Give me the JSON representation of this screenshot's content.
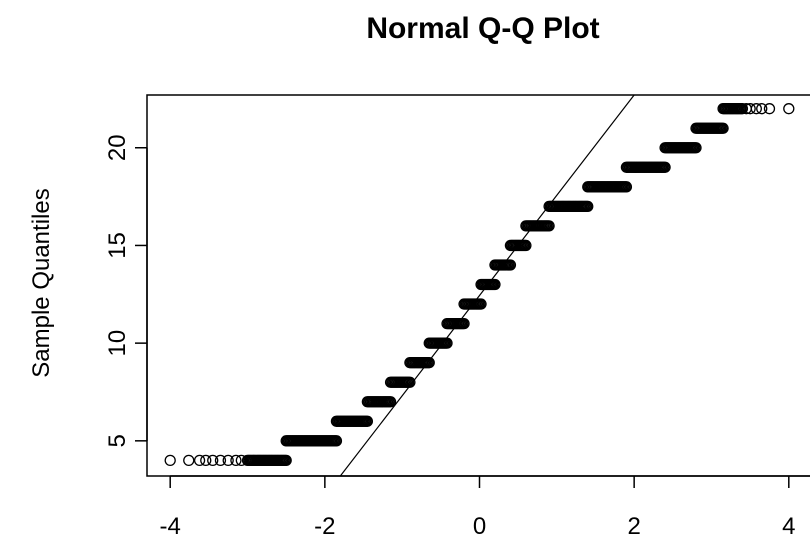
{
  "chart_data": {
    "type": "scatter",
    "title": "Normal Q-Q Plot",
    "xlabel": "",
    "ylabel": "Sample Quantiles",
    "xlim": [
      -4.3,
      4.3
    ],
    "ylim": [
      3.2,
      22.7
    ],
    "x_ticks": [
      -4,
      -2,
      0,
      2,
      4
    ],
    "x_tick_labels": [
      "-4",
      "-2",
      "0",
      "2",
      "4"
    ],
    "y_ticks": [
      5,
      10,
      15,
      20
    ],
    "y_tick_labels": [
      "5",
      "10",
      "15",
      "20"
    ],
    "grid": false,
    "legend": "none",
    "point_style": "open-circle",
    "reference_line": {
      "x1": -1.8,
      "y1": 3.2,
      "x2": 2.0,
      "y2": 22.7
    },
    "levels": [
      {
        "y": 4,
        "x_start": -3.0,
        "x_end": -2.5,
        "sparse_left": [
          -4.0,
          -3.76,
          -3.62,
          -3.54,
          -3.45,
          -3.35,
          -3.25,
          -3.15,
          -3.08
        ]
      },
      {
        "y": 5,
        "x_start": -2.5,
        "x_end": -1.85
      },
      {
        "y": 6,
        "x_start": -1.85,
        "x_end": -1.45
      },
      {
        "y": 7,
        "x_start": -1.45,
        "x_end": -1.15
      },
      {
        "y": 8,
        "x_start": -1.15,
        "x_end": -0.9
      },
      {
        "y": 9,
        "x_start": -0.9,
        "x_end": -0.65
      },
      {
        "y": 10,
        "x_start": -0.65,
        "x_end": -0.42
      },
      {
        "y": 11,
        "x_start": -0.42,
        "x_end": -0.2
      },
      {
        "y": 12,
        "x_start": -0.2,
        "x_end": 0.02
      },
      {
        "y": 13,
        "x_start": 0.02,
        "x_end": 0.2
      },
      {
        "y": 14,
        "x_start": 0.2,
        "x_end": 0.4
      },
      {
        "y": 15,
        "x_start": 0.4,
        "x_end": 0.6
      },
      {
        "y": 16,
        "x_start": 0.6,
        "x_end": 0.9
      },
      {
        "y": 17,
        "x_start": 0.9,
        "x_end": 1.4
      },
      {
        "y": 18,
        "x_start": 1.4,
        "x_end": 1.9
      },
      {
        "y": 19,
        "x_start": 1.9,
        "x_end": 2.4
      },
      {
        "y": 20,
        "x_start": 2.4,
        "x_end": 2.8
      },
      {
        "y": 21,
        "x_start": 2.8,
        "x_end": 3.15
      },
      {
        "y": 22,
        "x_start": 3.15,
        "x_end": 3.4,
        "sparse_right": [
          3.45,
          3.5,
          3.58,
          3.65,
          3.75,
          4.0
        ]
      }
    ]
  }
}
